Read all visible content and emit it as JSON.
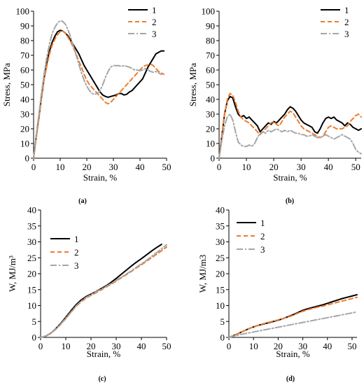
{
  "series_styles": [
    {
      "color": "#000000",
      "dash": "",
      "width": 2
    },
    {
      "color": "#ED7D31",
      "dash": "6,4",
      "width": 2
    },
    {
      "color": "#A6A6A6",
      "dash": "9,3,2,3",
      "width": 2
    }
  ],
  "chart_data": [
    {
      "type": "line",
      "panel_label": "(a)",
      "xlabel": "Strain, %",
      "ylabel": "Stress, MPa",
      "xlim": [
        0,
        50
      ],
      "ylim": [
        0,
        100
      ],
      "xticks": [
        0,
        10,
        20,
        30,
        40,
        50
      ],
      "yticks": [
        0,
        10,
        20,
        30,
        40,
        50,
        60,
        70,
        80,
        90,
        100
      ],
      "legend_position": "top-right",
      "series": [
        {
          "name": "1",
          "x": [
            0,
            1,
            2,
            3,
            4,
            5,
            6,
            7,
            8,
            9,
            10,
            11,
            12,
            13,
            14,
            15,
            16,
            17,
            18,
            19,
            20,
            21,
            22,
            23,
            24,
            25,
            26,
            27,
            28,
            29,
            30,
            31,
            32,
            33,
            34,
            35,
            36,
            37,
            38,
            39,
            40,
            41,
            42,
            43,
            44,
            45,
            46,
            47,
            48,
            49
          ],
          "y": [
            0,
            15,
            28,
            42,
            55,
            65,
            73,
            79,
            83,
            86,
            87,
            86.5,
            85,
            83,
            80,
            77,
            74,
            71,
            67,
            63,
            60,
            57,
            54,
            51,
            48,
            45,
            43,
            42,
            41.5,
            42,
            42.5,
            43,
            44,
            44,
            43,
            43.5,
            45,
            46,
            48,
            50,
            52,
            54,
            58,
            62,
            65,
            68,
            71,
            72,
            73,
            73
          ]
        },
        {
          "name": "2",
          "x": [
            0,
            1,
            2,
            3,
            4,
            5,
            6,
            7,
            8,
            9,
            10,
            11,
            12,
            13,
            14,
            15,
            16,
            17,
            18,
            19,
            20,
            21,
            22,
            23,
            24,
            25,
            26,
            27,
            28,
            29,
            30,
            31,
            32,
            33,
            34,
            35,
            36,
            37,
            38,
            39,
            40,
            41,
            42,
            43,
            44,
            45,
            46,
            47,
            48,
            49
          ],
          "y": [
            0,
            14,
            27,
            41,
            54,
            63,
            71,
            77,
            81,
            84,
            86,
            86.5,
            85,
            82,
            79,
            75,
            71,
            66,
            62,
            57,
            53,
            50,
            48,
            46,
            44,
            42,
            40,
            38,
            37,
            38,
            40,
            42,
            44,
            46,
            48,
            50,
            52,
            54,
            56,
            58,
            60,
            62,
            63,
            63.5,
            64,
            63,
            61,
            59,
            58,
            57
          ]
        },
        {
          "name": "3",
          "x": [
            0,
            1,
            2,
            3,
            4,
            5,
            6,
            7,
            8,
            9,
            10,
            11,
            12,
            13,
            14,
            15,
            16,
            17,
            18,
            19,
            20,
            21,
            22,
            23,
            24,
            25,
            26,
            27,
            28,
            29,
            30,
            31,
            32,
            33,
            34,
            35,
            36,
            37,
            38,
            39,
            40,
            41,
            42,
            43,
            44,
            45,
            46,
            47,
            48
          ],
          "y": [
            0,
            16,
            30,
            45,
            58,
            69,
            78,
            85,
            89,
            92,
            93.5,
            93,
            91,
            87,
            82,
            76,
            70,
            64,
            58,
            53,
            49,
            46,
            44,
            43.5,
            44,
            46,
            50,
            55,
            59,
            62,
            63,
            63,
            63,
            62.5,
            63,
            62.5,
            62,
            61,
            60,
            60,
            59.5,
            60,
            61,
            60,
            59,
            58.5,
            59,
            58,
            57
          ]
        }
      ]
    },
    {
      "type": "line",
      "panel_label": "(b)",
      "xlabel": "Strain, %",
      "ylabel": "Stress, MPa",
      "xlim": [
        0,
        52
      ],
      "ylim": [
        0,
        100
      ],
      "xticks": [
        0,
        10,
        20,
        30,
        40,
        50
      ],
      "yticks": [
        0,
        10,
        20,
        30,
        40,
        50,
        60,
        70,
        80,
        90,
        100
      ],
      "legend_position": "top-right",
      "series": [
        {
          "name": "1",
          "x": [
            0,
            1,
            2,
            3,
            4,
            5,
            6,
            7,
            8,
            9,
            10,
            11,
            12,
            13,
            14,
            15,
            16,
            17,
            18,
            19,
            20,
            21,
            22,
            23,
            24,
            25,
            26,
            27,
            28,
            29,
            30,
            31,
            32,
            33,
            34,
            35,
            36,
            37,
            38,
            39,
            40,
            41,
            42,
            43,
            44,
            45,
            46,
            47,
            48,
            49,
            50,
            51,
            52
          ],
          "y": [
            0,
            15,
            30,
            39,
            42,
            41,
            35,
            30,
            28,
            29,
            27,
            28,
            26,
            24,
            22,
            18,
            20,
            22,
            24,
            23,
            25,
            24,
            26,
            28,
            30,
            33,
            35,
            34,
            32,
            29,
            26,
            24,
            23,
            22,
            21,
            18,
            17,
            20,
            24,
            27,
            28,
            27,
            28,
            26,
            25,
            24,
            22,
            24,
            23,
            21,
            20,
            19,
            20
          ]
        },
        {
          "name": "2",
          "x": [
            0,
            1,
            2,
            3,
            4,
            5,
            6,
            7,
            8,
            9,
            10,
            11,
            12,
            13,
            14,
            15,
            16,
            17,
            18,
            19,
            20,
            21,
            22,
            23,
            24,
            25,
            26,
            27,
            28,
            29,
            30,
            31,
            32,
            33,
            34,
            35,
            36,
            37,
            38,
            39,
            40,
            41,
            42,
            43,
            44,
            45,
            46,
            47,
            48,
            49,
            50,
            51,
            52
          ],
          "y": [
            0,
            15,
            30,
            40,
            44,
            43,
            38,
            32,
            28,
            26,
            25,
            24,
            22,
            20,
            18,
            16,
            18,
            20,
            22,
            24,
            25,
            23,
            22,
            25,
            28,
            30,
            32,
            31,
            28,
            25,
            22,
            20,
            19,
            18,
            17,
            16,
            15,
            14,
            15,
            18,
            21,
            22,
            21,
            20,
            20,
            20,
            21,
            22,
            25,
            27,
            29,
            30,
            28
          ]
        },
        {
          "name": "3",
          "x": [
            0,
            1,
            2,
            3,
            4,
            5,
            6,
            7,
            8,
            9,
            10,
            11,
            12,
            13,
            14,
            15,
            16,
            17,
            18,
            19,
            20,
            21,
            22,
            23,
            24,
            25,
            26,
            27,
            28,
            29,
            30,
            31,
            32,
            33,
            34,
            35,
            36,
            37,
            38,
            39,
            40,
            41,
            42,
            43,
            44,
            45,
            46,
            47,
            48,
            49,
            50,
            51,
            52
          ],
          "y": [
            0,
            12,
            22,
            28,
            30,
            26,
            18,
            11,
            9,
            8,
            8,
            9,
            8,
            10,
            14,
            17,
            18,
            17,
            19,
            18,
            19,
            20,
            19,
            18,
            19,
            18,
            19,
            18,
            17,
            17,
            16,
            16,
            15,
            15,
            16,
            15,
            14,
            14,
            15,
            16,
            15,
            14,
            13,
            14,
            15,
            16,
            15,
            14,
            13,
            10,
            6,
            4,
            3
          ]
        }
      ]
    },
    {
      "type": "line",
      "panel_label": "(c)",
      "xlabel": "Strain, %",
      "ylabel": "W, MJ/m³",
      "xlim": [
        0,
        50
      ],
      "ylim": [
        0,
        40
      ],
      "xticks": [
        0,
        10,
        20,
        30,
        40,
        50
      ],
      "yticks": [
        0,
        5,
        10,
        15,
        20,
        25,
        30,
        35,
        40
      ],
      "legend_position": "top-left",
      "series": [
        {
          "name": "1",
          "x": [
            0,
            2,
            4,
            6,
            8,
            10,
            12,
            14,
            16,
            18,
            20,
            22,
            24,
            26,
            28,
            30,
            32,
            34,
            36,
            38,
            40,
            42,
            44,
            46,
            48
          ],
          "y": [
            0,
            0.4,
            1.3,
            2.7,
            4.4,
            6.3,
            8.3,
            10.2,
            11.7,
            12.8,
            13.6,
            14.4,
            15.3,
            16.2,
            17.3,
            18.5,
            19.8,
            21.1,
            22.4,
            23.6,
            24.7,
            25.9,
            27.1,
            28.2,
            29.2
          ]
        },
        {
          "name": "2",
          "x": [
            0,
            2,
            4,
            6,
            8,
            10,
            12,
            14,
            16,
            18,
            20,
            22,
            24,
            26,
            28,
            30,
            32,
            34,
            36,
            38,
            40,
            42,
            44,
            46,
            48,
            50
          ],
          "y": [
            0,
            0.4,
            1.2,
            2.5,
            4.1,
            5.9,
            7.8,
            9.7,
            11.1,
            12.3,
            13.2,
            14.0,
            14.9,
            15.8,
            16.7,
            17.7,
            18.7,
            19.7,
            20.7,
            21.8,
            22.8,
            23.9,
            25.0,
            26.1,
            27.2,
            28.4
          ]
        },
        {
          "name": "3",
          "x": [
            0,
            2,
            4,
            6,
            8,
            10,
            12,
            14,
            16,
            18,
            20,
            22,
            24,
            26,
            28,
            30,
            32,
            34,
            36,
            38,
            40,
            42,
            44,
            46,
            48,
            50
          ],
          "y": [
            0,
            0.4,
            1.3,
            2.6,
            4.2,
            6.0,
            7.9,
            9.8,
            11.3,
            12.5,
            13.4,
            14.3,
            15.1,
            16.0,
            16.9,
            17.9,
            18.9,
            19.9,
            20.9,
            22.0,
            23.1,
            24.2,
            25.4,
            26.6,
            27.8,
            29.1
          ]
        }
      ]
    },
    {
      "type": "line",
      "panel_label": "(d)",
      "xlabel": "Strain, %",
      "ylabel": "W, MJ/m3",
      "xlim": [
        0,
        52
      ],
      "ylim": [
        0,
        40
      ],
      "xticks": [
        0,
        10,
        20,
        30,
        40,
        50
      ],
      "yticks": [
        0,
        5,
        10,
        15,
        20,
        25,
        30,
        35,
        40
      ],
      "legend_position": "top-left",
      "series": [
        {
          "name": "1",
          "x": [
            0,
            2,
            4,
            6,
            8,
            10,
            12,
            14,
            16,
            18,
            20,
            22,
            24,
            26,
            28,
            30,
            32,
            34,
            36,
            38,
            40,
            42,
            44,
            46,
            48,
            50,
            52
          ],
          "y": [
            0,
            0.6,
            1.3,
            2.0,
            2.7,
            3.3,
            3.8,
            4.2,
            4.6,
            5.0,
            5.4,
            5.9,
            6.5,
            7.1,
            7.8,
            8.5,
            9.0,
            9.4,
            9.8,
            10.2,
            10.7,
            11.2,
            11.7,
            12.2,
            12.6,
            13.0,
            13.4
          ]
        },
        {
          "name": "2",
          "x": [
            0,
            2,
            4,
            6,
            8,
            10,
            12,
            14,
            16,
            18,
            20,
            22,
            24,
            26,
            28,
            30,
            32,
            34,
            36,
            38,
            40,
            42,
            44,
            46,
            48,
            50,
            52
          ],
          "y": [
            0,
            0.6,
            1.3,
            2.0,
            2.7,
            3.3,
            3.8,
            4.3,
            4.7,
            5.1,
            5.5,
            5.9,
            6.4,
            6.9,
            7.6,
            8.2,
            8.7,
            9.1,
            9.5,
            9.8,
            10.2,
            10.6,
            11.0,
            11.4,
            11.8,
            12.2,
            12.6
          ]
        },
        {
          "name": "3",
          "x": [
            0,
            2,
            4,
            6,
            8,
            10,
            12,
            14,
            16,
            18,
            20,
            22,
            24,
            26,
            28,
            30,
            32,
            34,
            36,
            38,
            40,
            42,
            44,
            46,
            48,
            50,
            52
          ],
          "y": [
            0,
            0.4,
            0.8,
            1.1,
            1.4,
            1.7,
            2.0,
            2.3,
            2.6,
            2.9,
            3.2,
            3.5,
            3.8,
            4.1,
            4.4,
            4.7,
            5.0,
            5.3,
            5.6,
            5.9,
            6.2,
            6.5,
            6.8,
            7.1,
            7.4,
            7.7,
            8.0
          ]
        }
      ]
    }
  ]
}
